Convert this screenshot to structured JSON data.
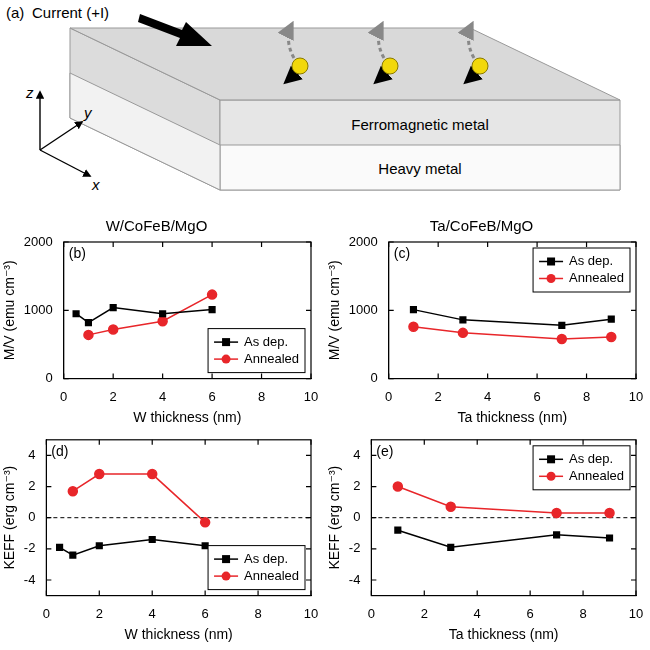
{
  "schematic": {
    "panel": "(a)",
    "current_label": "Current (+I)",
    "axes": [
      "z",
      "y",
      "x"
    ],
    "layers": [
      "Ferromagnetic metal",
      "Heavy metal"
    ]
  },
  "chart_data": [
    {
      "panel": "(b)",
      "type": "line",
      "title": "W/CoFeB/MgO",
      "x_label": "W thickness (nm)",
      "y_label": "M/V (emu cm⁻³)",
      "xlim": [
        0,
        10
      ],
      "xticks": [
        0,
        2,
        4,
        6,
        8,
        10
      ],
      "ylim": [
        0,
        2000
      ],
      "yticks": [
        0,
        1000,
        2000
      ],
      "grid": false,
      "legend": "bottom-right",
      "series": [
        {
          "name": "As dep.",
          "color": "#000000",
          "marker": "square",
          "x": [
            0.5,
            1,
            2,
            4,
            6
          ],
          "values": [
            950,
            820,
            1040,
            950,
            1010
          ]
        },
        {
          "name": "Annealed",
          "color": "#e8262a",
          "marker": "circle",
          "x": [
            1,
            2,
            4,
            6
          ],
          "values": [
            640,
            720,
            840,
            1230
          ]
        }
      ]
    },
    {
      "panel": "(c)",
      "type": "line",
      "title": "Ta/CoFeB/MgO",
      "x_label": "Ta thickness (nm)",
      "y_label": "M/V (emu cm⁻³)",
      "xlim": [
        0,
        10
      ],
      "xticks": [
        0,
        2,
        4,
        6,
        8,
        10
      ],
      "ylim": [
        0,
        2000
      ],
      "yticks": [
        0,
        1000,
        2000
      ],
      "grid": false,
      "legend": "top-right",
      "series": [
        {
          "name": "As dep.",
          "color": "#000000",
          "marker": "square",
          "x": [
            1,
            3,
            7,
            9
          ],
          "values": [
            1010,
            860,
            780,
            870
          ]
        },
        {
          "name": "Annealed",
          "color": "#e8262a",
          "marker": "circle",
          "x": [
            1,
            3,
            7,
            9
          ],
          "values": [
            760,
            670,
            580,
            610
          ]
        }
      ]
    },
    {
      "panel": "(d)",
      "type": "line",
      "x_label": "W thickness (nm)",
      "y_label": "KEFF (erg cm⁻³)",
      "xlim": [
        0,
        10
      ],
      "xticks": [
        0,
        2,
        4,
        6,
        8,
        10
      ],
      "ylim": [
        -5,
        5
      ],
      "yticks": [
        -4,
        -2,
        0,
        2,
        4
      ],
      "grid": false,
      "legend": "bottom-right",
      "reference_line": {
        "y": 0,
        "line_style": "dashed"
      },
      "series": [
        {
          "name": "As dep.",
          "color": "#000000",
          "marker": "square",
          "x": [
            0.5,
            1,
            2,
            4,
            6
          ],
          "values": [
            -1.9,
            -2.4,
            -1.8,
            -1.4,
            -1.8
          ]
        },
        {
          "name": "Annealed",
          "color": "#e8262a",
          "marker": "circle",
          "x": [
            1,
            2,
            4,
            6
          ],
          "values": [
            1.7,
            2.8,
            2.8,
            -0.3
          ]
        }
      ]
    },
    {
      "panel": "(e)",
      "type": "line",
      "x_label": "Ta thickness (nm)",
      "y_label": "KEFF (erg cm⁻³)",
      "xlim": [
        0,
        10
      ],
      "xticks": [
        0,
        2,
        4,
        6,
        8,
        10
      ],
      "ylim": [
        -5,
        5
      ],
      "yticks": [
        -4,
        -2,
        0,
        2,
        4
      ],
      "grid": false,
      "legend": "top-right",
      "reference_line": {
        "y": 0,
        "line_style": "dashed"
      },
      "series": [
        {
          "name": "As dep.",
          "color": "#000000",
          "marker": "square",
          "x": [
            1,
            3,
            7,
            9
          ],
          "values": [
            -0.8,
            -1.9,
            -1.1,
            -1.3
          ]
        },
        {
          "name": "Annealed",
          "color": "#e8262a",
          "marker": "circle",
          "x": [
            1,
            3,
            7,
            9
          ],
          "values": [
            2.0,
            0.7,
            0.3,
            0.3
          ]
        }
      ]
    }
  ]
}
